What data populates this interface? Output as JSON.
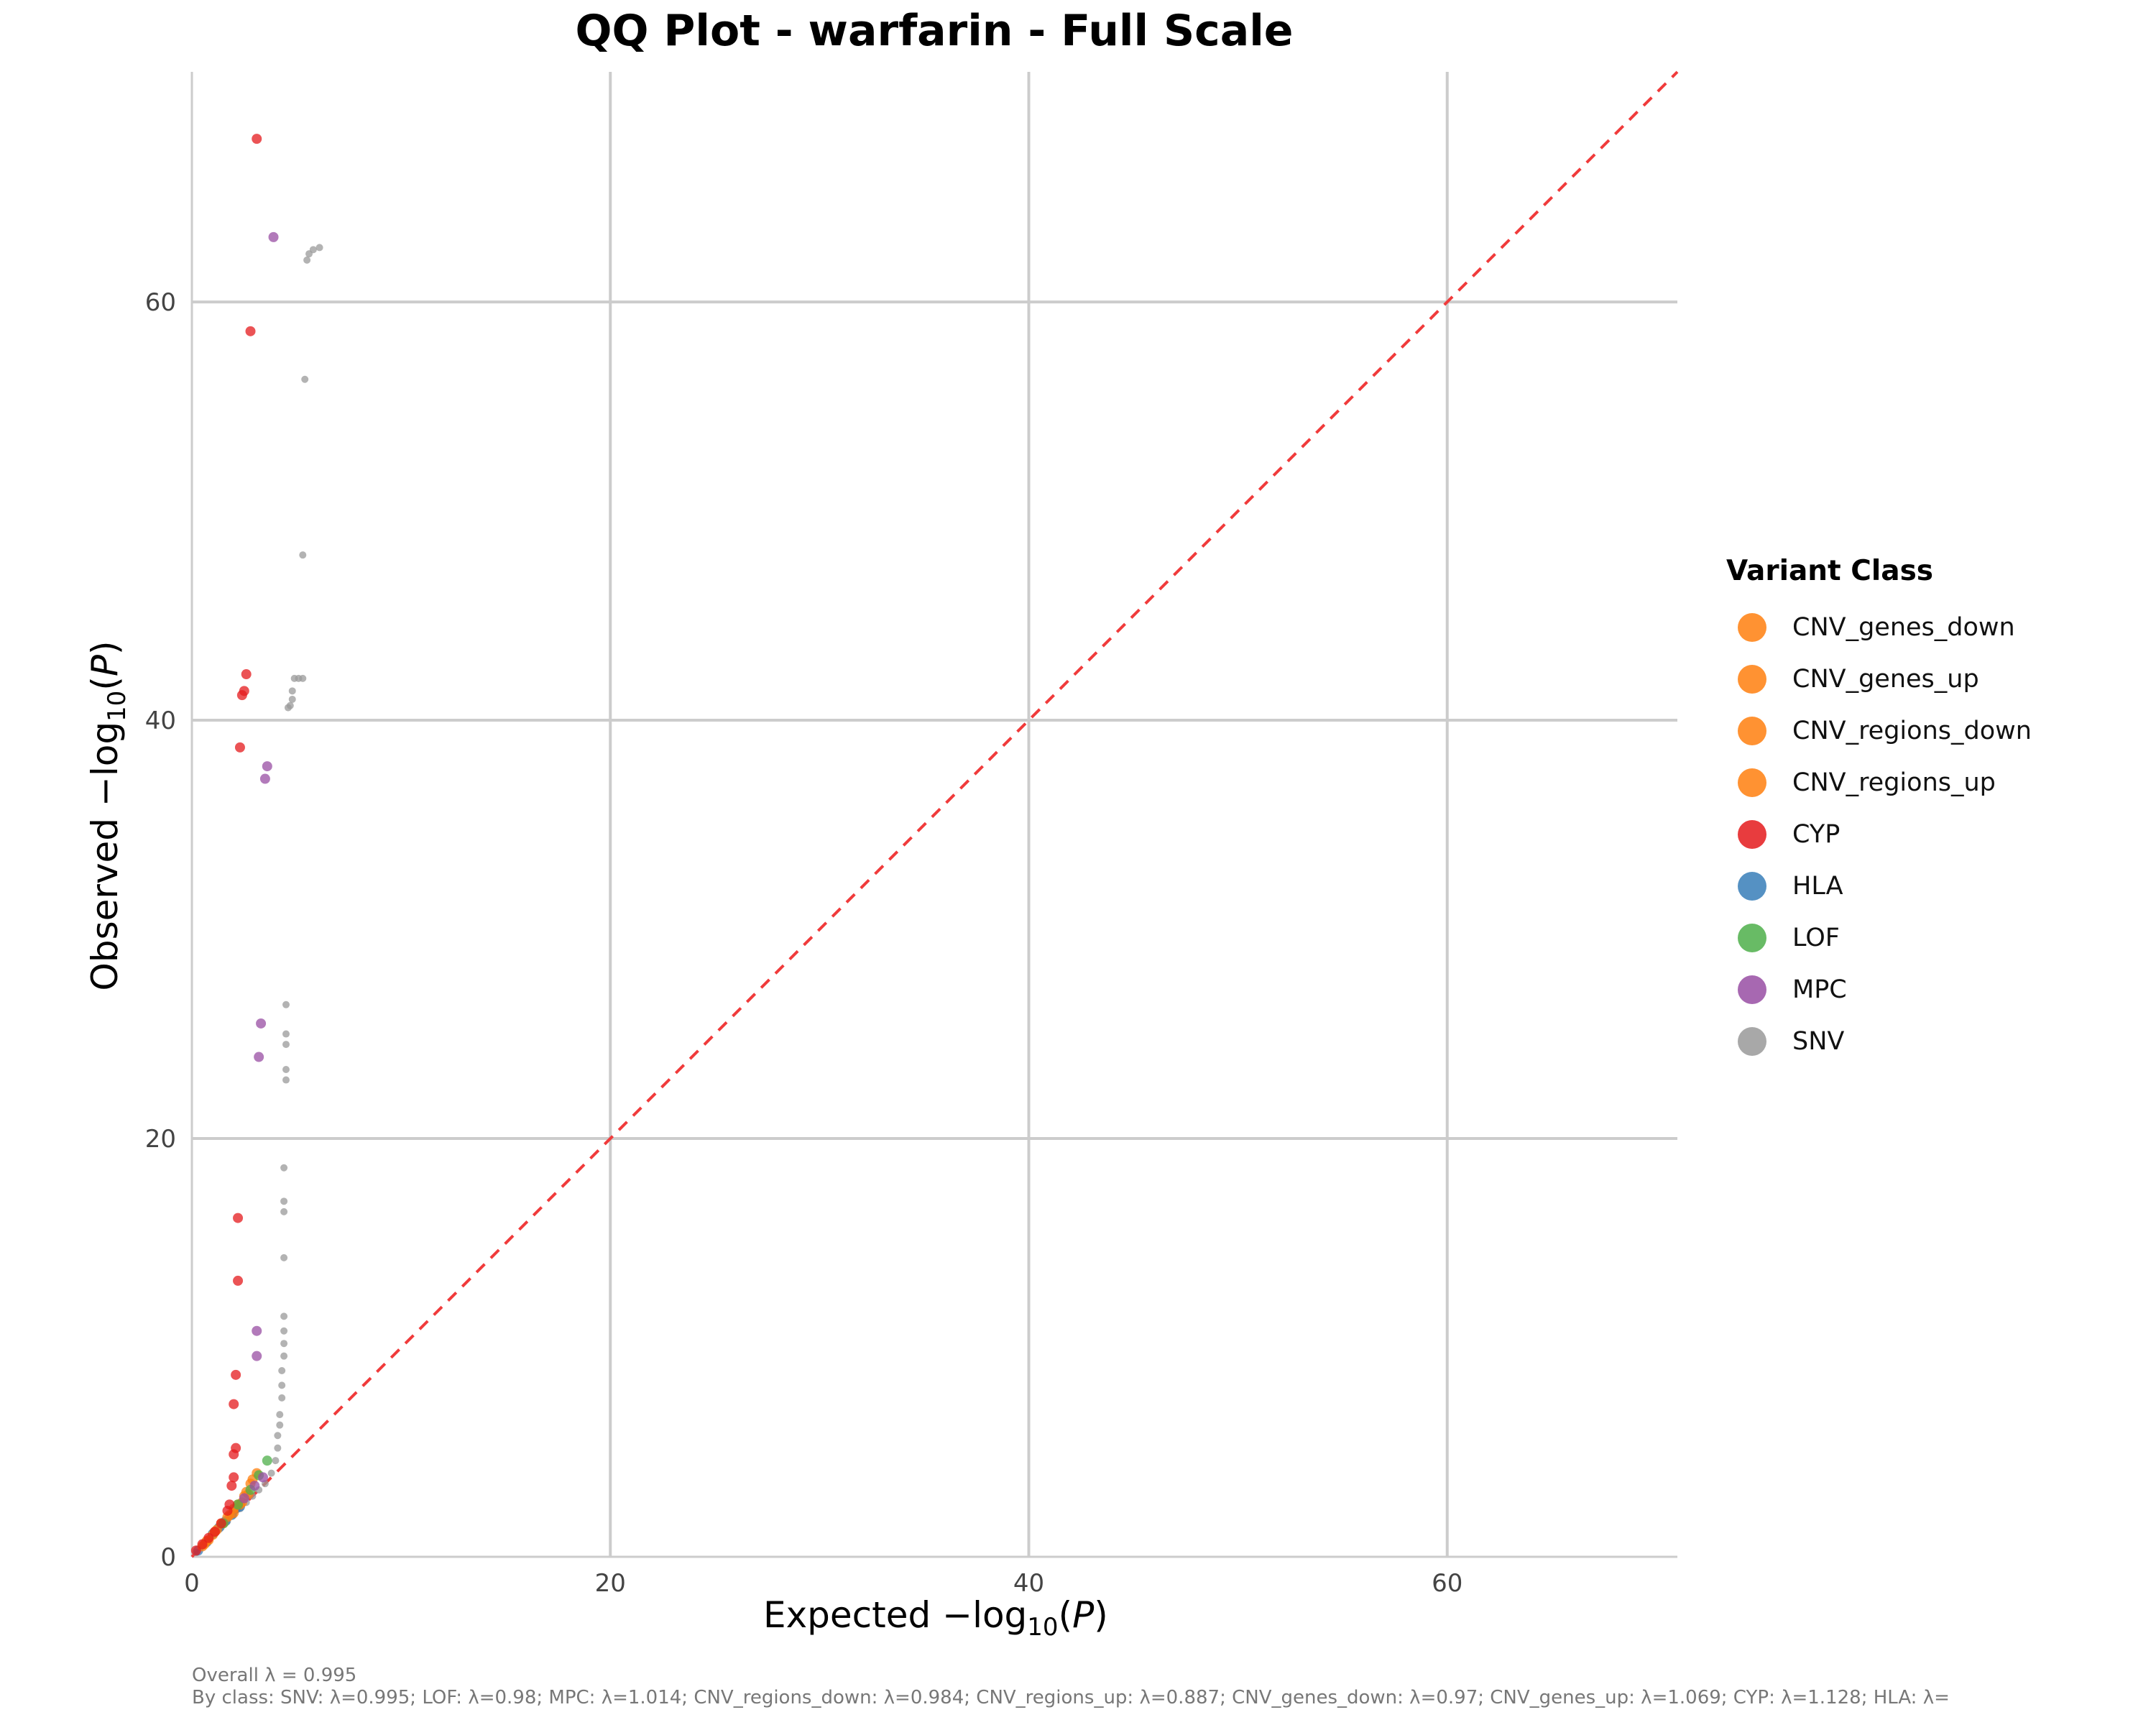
{
  "chart_data": {
    "type": "scatter",
    "title": "QQ Plot - warfarin - Full Scale",
    "xlabel": "Expected −log10(P)",
    "ylabel": "Observed −log10(P)",
    "xlim": [
      0,
      71
    ],
    "ylim": [
      0,
      71
    ],
    "x_ticks": [
      0,
      20,
      40,
      60
    ],
    "y_ticks": [
      0,
      20,
      40,
      60
    ],
    "grid": true,
    "reference_line": {
      "style": "dashed",
      "color": "#f03b3b",
      "slope": 1
    },
    "legend_title": "Variant Class",
    "legend_position": "right",
    "series": [
      {
        "name": "CNV_genes_down",
        "color": "#ff7f0e",
        "points": [
          [
            0.5,
            0.5
          ],
          [
            1.0,
            1.05
          ],
          [
            1.5,
            1.6
          ],
          [
            2.0,
            2.1
          ],
          [
            2.4,
            2.6
          ]
        ]
      },
      {
        "name": "CNV_genes_up",
        "color": "#ff7f0e",
        "points": [
          [
            0.7,
            0.75
          ],
          [
            1.2,
            1.3
          ],
          [
            1.8,
            2.0
          ],
          [
            2.3,
            2.5
          ],
          [
            2.7,
            3.0
          ]
        ]
      },
      {
        "name": "CNV_regions_down",
        "color": "#ff7f0e",
        "points": [
          [
            0.6,
            0.6
          ],
          [
            1.1,
            1.2
          ],
          [
            1.7,
            1.9
          ],
          [
            2.2,
            2.5
          ],
          [
            2.6,
            3.1
          ],
          [
            2.8,
            3.5
          ]
        ]
      },
      {
        "name": "CNV_regions_up",
        "color": "#ff7f0e",
        "points": [
          [
            0.8,
            0.8
          ],
          [
            1.4,
            1.6
          ],
          [
            2.0,
            2.3
          ],
          [
            2.5,
            2.9
          ],
          [
            2.9,
            3.7
          ],
          [
            3.1,
            4.0
          ]
        ]
      },
      {
        "name": "CYP",
        "color": "#e41a1c",
        "points": [
          [
            0.2,
            0.3
          ],
          [
            0.5,
            0.6
          ],
          [
            0.8,
            0.9
          ],
          [
            1.1,
            1.2
          ],
          [
            1.4,
            1.6
          ],
          [
            1.7,
            2.2
          ],
          [
            1.8,
            2.5
          ],
          [
            1.9,
            3.4
          ],
          [
            2.0,
            3.8
          ],
          [
            2.0,
            4.9
          ],
          [
            2.1,
            5.2
          ],
          [
            2.0,
            7.3
          ],
          [
            2.1,
            8.7
          ],
          [
            2.2,
            13.2
          ],
          [
            2.2,
            16.2
          ],
          [
            2.3,
            38.7
          ],
          [
            2.4,
            41.2
          ],
          [
            2.5,
            41.4
          ],
          [
            2.6,
            42.2
          ],
          [
            2.8,
            58.6
          ],
          [
            3.1,
            67.8
          ]
        ]
      },
      {
        "name": "HLA",
        "color": "#377eb8",
        "points": [
          [
            0.3,
            0.3
          ],
          [
            0.7,
            0.7
          ],
          [
            1.0,
            1.1
          ],
          [
            1.3,
            1.4
          ],
          [
            1.6,
            1.7
          ],
          [
            1.9,
            2.0
          ],
          [
            2.1,
            2.3
          ],
          [
            2.3,
            2.4
          ]
        ]
      },
      {
        "name": "LOF",
        "color": "#4daf4a",
        "points": [
          [
            1.5,
            1.6
          ],
          [
            2.2,
            2.5
          ],
          [
            2.8,
            3.2
          ],
          [
            3.2,
            3.9
          ],
          [
            3.6,
            4.6
          ]
        ]
      },
      {
        "name": "MPC",
        "color": "#984ea3",
        "points": [
          [
            2.5,
            2.8
          ],
          [
            3.0,
            3.4
          ],
          [
            3.4,
            3.8
          ],
          [
            3.1,
            9.6
          ],
          [
            3.1,
            10.8
          ],
          [
            3.2,
            23.9
          ],
          [
            3.3,
            25.5
          ],
          [
            3.5,
            37.2
          ],
          [
            3.6,
            37.8
          ],
          [
            3.9,
            63.1
          ]
        ]
      },
      {
        "name": "SNV",
        "color": "#999999",
        "points": [
          [
            0.2,
            0.2
          ],
          [
            0.5,
            0.5
          ],
          [
            0.8,
            0.8
          ],
          [
            1.1,
            1.1
          ],
          [
            1.4,
            1.4
          ],
          [
            1.7,
            1.7
          ],
          [
            2.0,
            2.0
          ],
          [
            2.3,
            2.3
          ],
          [
            2.6,
            2.6
          ],
          [
            2.9,
            2.9
          ],
          [
            3.2,
            3.2
          ],
          [
            3.5,
            3.5
          ],
          [
            3.8,
            4.0
          ],
          [
            4.0,
            4.6
          ],
          [
            4.1,
            5.2
          ],
          [
            4.1,
            5.8
          ],
          [
            4.2,
            6.3
          ],
          [
            4.2,
            6.8
          ],
          [
            4.3,
            7.6
          ],
          [
            4.3,
            8.2
          ],
          [
            4.3,
            8.9
          ],
          [
            4.4,
            9.6
          ],
          [
            4.4,
            10.2
          ],
          [
            4.4,
            10.8
          ],
          [
            4.4,
            11.5
          ],
          [
            4.4,
            14.3
          ],
          [
            4.4,
            16.5
          ],
          [
            4.4,
            17.0
          ],
          [
            4.4,
            18.6
          ],
          [
            4.5,
            22.8
          ],
          [
            4.5,
            23.3
          ],
          [
            4.5,
            24.5
          ],
          [
            4.5,
            25.0
          ],
          [
            4.5,
            26.4
          ],
          [
            4.6,
            40.6
          ],
          [
            4.7,
            40.7
          ],
          [
            4.8,
            41.0
          ],
          [
            4.8,
            41.4
          ],
          [
            4.9,
            42.0
          ],
          [
            5.1,
            42.0
          ],
          [
            5.3,
            42.0
          ],
          [
            5.3,
            47.9
          ],
          [
            5.4,
            56.3
          ],
          [
            5.5,
            62.0
          ],
          [
            5.6,
            62.3
          ],
          [
            5.8,
            62.5
          ],
          [
            6.1,
            62.6
          ]
        ]
      }
    ]
  },
  "footer": {
    "overall": "Overall λ = 0.995",
    "by_class": "By class: SNV: λ=0.995; LOF: λ=0.98; MPC: λ=1.014; CNV_regions_down: λ=0.984; CNV_regions_up: λ=0.887; CNV_genes_down: λ=0.97; CNV_genes_up: λ=1.069; CYP: λ=1.128; HLA: λ="
  }
}
